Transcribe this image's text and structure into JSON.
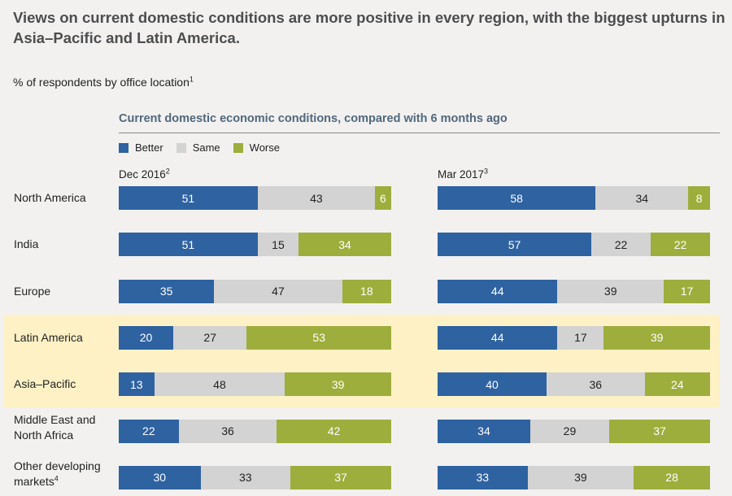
{
  "headline": "Views on current domestic conditions are more positive in every region, with the biggest upturns in Asia–Pacific and Latin America.",
  "subtitle": {
    "text": "% of respondents by office location",
    "note": "1"
  },
  "chart_data": {
    "type": "bar",
    "stacked": true,
    "orientation": "horizontal",
    "title": "Current domestic economic conditions, compared with 6 months ago",
    "legend": [
      {
        "name": "Better",
        "color": "#2e62a1"
      },
      {
        "name": "Same",
        "color": "#d3d3d3"
      },
      {
        "name": "Worse",
        "color": "#9eae3c"
      }
    ],
    "legend_position": "top-left",
    "periods": [
      {
        "label": "Dec 2016",
        "note": "2"
      },
      {
        "label": "Mar 2017",
        "note": "3"
      }
    ],
    "categories": [
      {
        "label": "North America",
        "highlight": false
      },
      {
        "label": "India",
        "highlight": false
      },
      {
        "label": "Europe",
        "highlight": false
      },
      {
        "label": "Latin America",
        "highlight": true
      },
      {
        "label": "Asia–Pacific",
        "highlight": true
      },
      {
        "label": "Middle East and North Africa",
        "highlight": false
      },
      {
        "label": "Other developing markets",
        "note": "4",
        "highlight": false
      }
    ],
    "values": [
      [
        [
          51,
          43,
          6
        ],
        [
          58,
          34,
          8
        ]
      ],
      [
        [
          51,
          15,
          34
        ],
        [
          57,
          22,
          22
        ]
      ],
      [
        [
          35,
          47,
          18
        ],
        [
          44,
          39,
          17
        ]
      ],
      [
        [
          20,
          27,
          53
        ],
        [
          44,
          17,
          39
        ]
      ],
      [
        [
          13,
          48,
          39
        ],
        [
          40,
          36,
          24
        ]
      ],
      [
        [
          22,
          36,
          42
        ],
        [
          34,
          29,
          37
        ]
      ],
      [
        [
          30,
          33,
          37
        ],
        [
          33,
          39,
          28
        ]
      ]
    ],
    "scale_max": 100
  }
}
